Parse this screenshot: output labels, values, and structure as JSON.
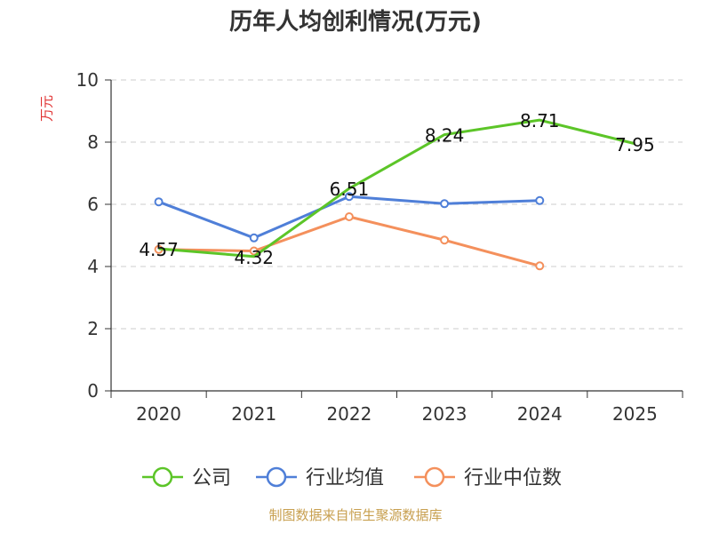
{
  "title": "历年人均创利情况(万元)",
  "source": "制图数据来自恒生聚源数据库",
  "chart_data": {
    "type": "line",
    "title": "历年人均创利情况(万元)",
    "ylabel": "万元",
    "xlabel": "",
    "categories": [
      "2020",
      "2021",
      "2022",
      "2023",
      "2024",
      "2025"
    ],
    "ylim": [
      0,
      10
    ],
    "yticks": [
      "0",
      "2",
      "4",
      "6",
      "8",
      "10"
    ],
    "grid": true,
    "legend_position": "bottom",
    "series": [
      {
        "name": "公司",
        "color": "#5cc528",
        "values": [
          4.57,
          4.32,
          6.51,
          8.24,
          8.71,
          7.95
        ],
        "labels": [
          "4.57",
          "4.32",
          "6.51",
          "8.24",
          "8.71",
          "7.95"
        ],
        "show_markers": false
      },
      {
        "name": "行业均值",
        "color": "#4f7fd8",
        "values": [
          6.08,
          4.92,
          6.25,
          6.02,
          6.12,
          null
        ],
        "show_markers": true
      },
      {
        "name": "行业中位数",
        "color": "#f4905c",
        "values": [
          4.55,
          4.5,
          5.6,
          4.85,
          4.02,
          null
        ],
        "show_markers": true
      }
    ]
  }
}
